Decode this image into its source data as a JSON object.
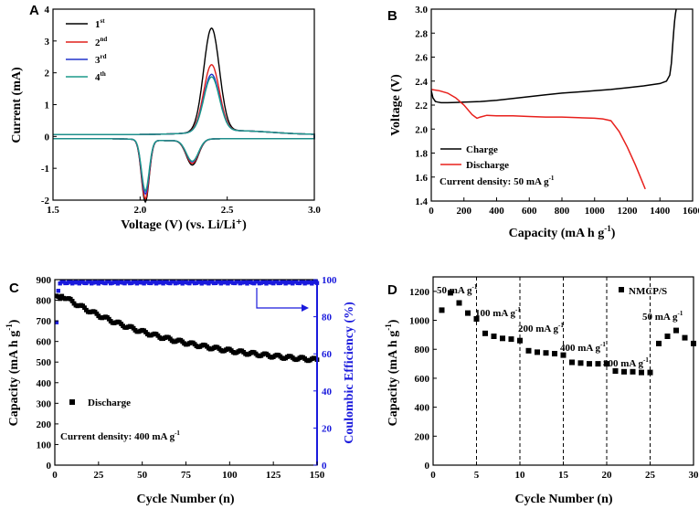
{
  "chart_data": [
    {
      "panel": "A",
      "type": "line",
      "xlabel": "Voltage (V) (vs. Li/Li⁺)",
      "ylabel": "Current (mA)",
      "xlim": [
        1.5,
        3.0
      ],
      "ylim": [
        -2,
        4
      ],
      "xticks": [
        "1.5",
        "2.0",
        "2.5",
        "3.0"
      ],
      "yticks": [
        "-2",
        "-1",
        "0",
        "1",
        "2",
        "3",
        "4"
      ],
      "legend_position": "top-left",
      "series": [
        {
          "name": "1st",
          "label_main": "1",
          "label_sup": "st",
          "color": "#000000",
          "ox_peak": 3.25,
          "red_peak1": -0.8,
          "red_peak2": -1.95
        },
        {
          "name": "2nd",
          "label_main": "2",
          "label_sup": "nd",
          "color": "#e0201c",
          "ox_peak": 2.1,
          "red_peak1": -0.75,
          "red_peak2": -1.85
        },
        {
          "name": "3rd",
          "label_main": "3",
          "label_sup": "rd",
          "color": "#2233cc",
          "ox_peak": 1.8,
          "red_peak1": -0.7,
          "red_peak2": -1.7
        },
        {
          "name": "4th",
          "label_main": "4",
          "label_sup": "th",
          "color": "#1b9a8a",
          "ox_peak": 1.72,
          "red_peak1": -0.68,
          "red_peak2": -1.6
        }
      ],
      "peaks": {
        "oxidation_v": 2.41,
        "reduction1_v": 2.3,
        "reduction2_v": 2.03
      }
    },
    {
      "panel": "B",
      "type": "line",
      "xlabel_main": "Capacity (mA h g",
      "xlabel_sup": "-1",
      "xlabel_end": ")",
      "ylabel": "Voltage (V)",
      "xlim": [
        0,
        1600
      ],
      "ylim": [
        1.4,
        3.0
      ],
      "xticks": [
        "0",
        "200",
        "400",
        "600",
        "800",
        "1000",
        "1200",
        "1400",
        "1600"
      ],
      "yticks": [
        "1.4",
        "1.6",
        "1.8",
        "2.0",
        "2.2",
        "2.4",
        "2.6",
        "2.8",
        "3.0"
      ],
      "legend_position": "bottom-left",
      "annotation_main": "Current density: 50 mA g",
      "annotation_sup": "-1",
      "series": [
        {
          "name": "Charge",
          "color": "#000000",
          "x": [
            0,
            10,
            25,
            40,
            60,
            100,
            150,
            200,
            300,
            400,
            500,
            600,
            700,
            800,
            900,
            1000,
            1100,
            1200,
            1300,
            1400,
            1440,
            1460,
            1470,
            1478,
            1485,
            1490,
            1495,
            1500
          ],
          "y": [
            2.32,
            2.26,
            2.23,
            2.225,
            2.22,
            2.22,
            2.222,
            2.225,
            2.23,
            2.24,
            2.255,
            2.27,
            2.285,
            2.3,
            2.31,
            2.32,
            2.33,
            2.345,
            2.36,
            2.38,
            2.4,
            2.45,
            2.55,
            2.7,
            2.82,
            2.9,
            2.96,
            3.0
          ]
        },
        {
          "name": "Discharge",
          "color": "#e8201c",
          "x": [
            0,
            50,
            100,
            150,
            200,
            250,
            280,
            300,
            340,
            400,
            500,
            600,
            700,
            800,
            900,
            1000,
            1050,
            1100,
            1150,
            1200,
            1250,
            1280,
            1310
          ],
          "y": [
            2.33,
            2.32,
            2.3,
            2.26,
            2.2,
            2.12,
            2.09,
            2.1,
            2.115,
            2.11,
            2.11,
            2.105,
            2.1,
            2.1,
            2.095,
            2.09,
            2.085,
            2.07,
            1.98,
            1.85,
            1.7,
            1.6,
            1.5
          ]
        }
      ]
    },
    {
      "panel": "C",
      "type": "scatter",
      "xlabel": "Cycle Number (n)",
      "ylabel_main": "Capacity (mA h g",
      "ylabel_sup": "-1",
      "ylabel_end": ")",
      "y2label": "Coulombic Efficiency (%)",
      "xlim": [
        0,
        150
      ],
      "ylim": [
        0,
        900
      ],
      "y2lim": [
        0,
        100
      ],
      "xticks": [
        "0",
        "25",
        "50",
        "75",
        "100",
        "125",
        "150"
      ],
      "yticks": [
        "0",
        "100",
        "200",
        "300",
        "400",
        "500",
        "600",
        "700",
        "800",
        "900"
      ],
      "y2ticks": [
        "0",
        "20",
        "40",
        "60",
        "80",
        "100"
      ],
      "legend_label": "Discharge",
      "legend_position": "bottom-left",
      "annotation_main": "Current density: 400 mA g",
      "annotation_sup": "-1",
      "series": [
        {
          "name": "Discharge",
          "color": "#000000",
          "axis": "left",
          "start": 840,
          "end": 500,
          "n": 150
        },
        {
          "name": "Coulombic Efficiency",
          "color": "#1a1adc",
          "axis": "right",
          "first": 77,
          "steady": 98.5,
          "n": 150
        }
      ]
    },
    {
      "panel": "D",
      "type": "scatter",
      "xlabel": "Cycle Number (n)",
      "ylabel_main": "Capacity (mA h g",
      "ylabel_sup": "-1",
      "ylabel_end": ")",
      "xlim": [
        0,
        30
      ],
      "ylim": [
        0,
        1300
      ],
      "xticks": [
        "0",
        "5",
        "10",
        "15",
        "20",
        "25",
        "30"
      ],
      "yticks": [
        "0",
        "200",
        "400",
        "600",
        "800",
        "1000",
        "1200"
      ],
      "legend_label": "NMCP/S",
      "legend_position": "top-right",
      "dividers": [
        5,
        10,
        15,
        20,
        25
      ],
      "rate_labels": [
        {
          "main": "50 mA g",
          "sup": "-1"
        },
        {
          "main": "100 mA g",
          "sup": "-1"
        },
        {
          "main": "200 mA g",
          "sup": "-1"
        },
        {
          "main": "400 mA g",
          "sup": "-1"
        },
        {
          "main": "800 mA g",
          "sup": "-1"
        },
        {
          "main": "50 mA g",
          "sup": "-1"
        }
      ],
      "x": [
        1,
        2,
        3,
        4,
        5,
        6,
        7,
        8,
        9,
        10,
        11,
        12,
        13,
        14,
        15,
        16,
        17,
        18,
        19,
        20,
        21,
        22,
        23,
        24,
        25,
        26,
        27,
        28,
        29,
        30
      ],
      "values": [
        1070,
        1190,
        1120,
        1050,
        1010,
        910,
        890,
        875,
        870,
        860,
        790,
        780,
        775,
        770,
        760,
        710,
        705,
        700,
        700,
        700,
        650,
        645,
        645,
        640,
        640,
        840,
        890,
        930,
        880,
        840
      ]
    }
  ]
}
